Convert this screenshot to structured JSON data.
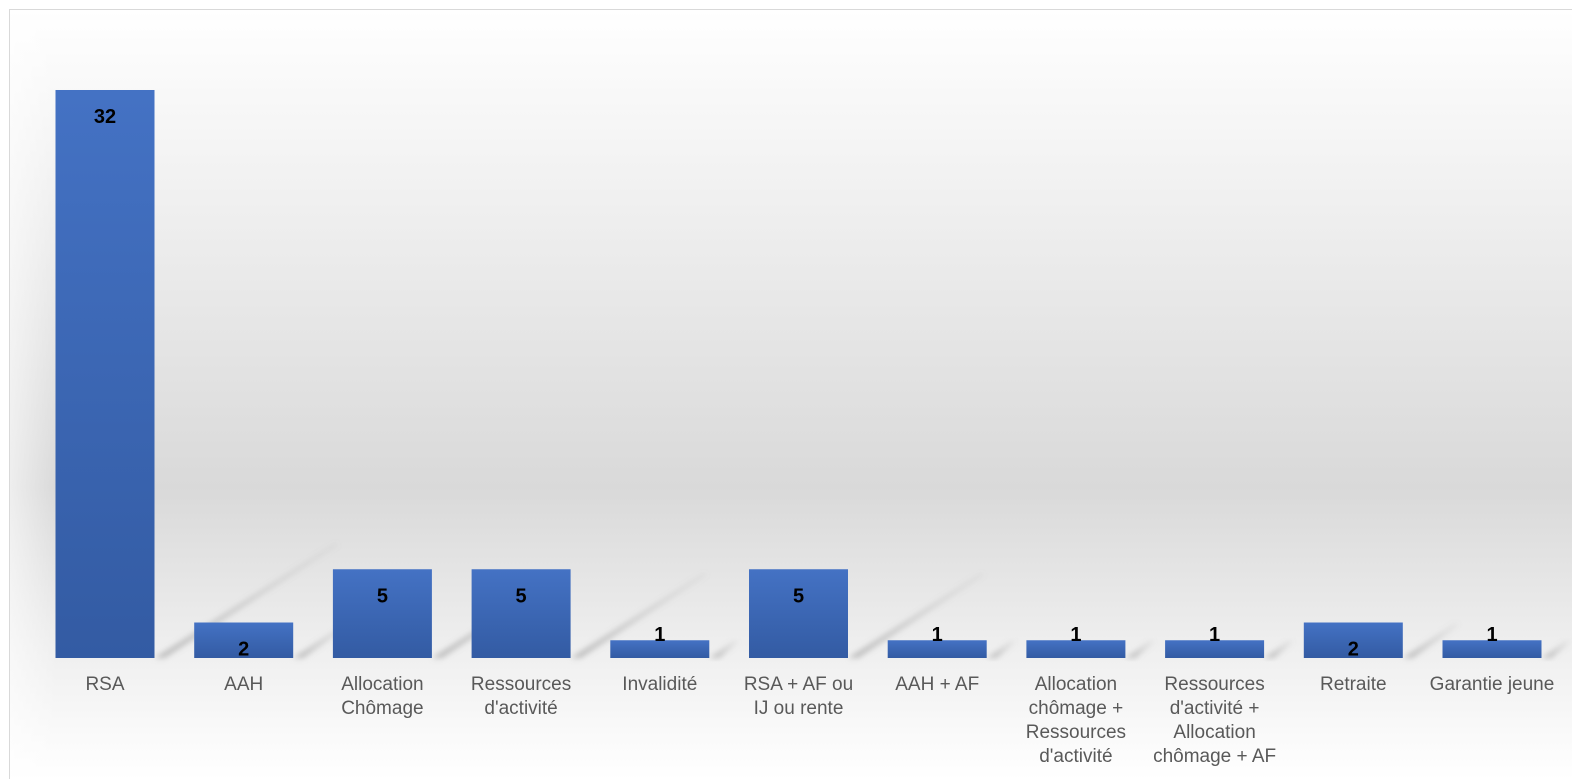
{
  "chart_data": {
    "type": "bar",
    "title": "",
    "xlabel": "",
    "ylabel": "",
    "ylim": [
      0,
      32
    ],
    "grid": false,
    "legend": "none",
    "bar_color": "#4472c4",
    "bar_color_dark": "#2f5597",
    "label_color": "#595959",
    "categories": [
      "RSA",
      "AAH",
      "Allocation Chômage",
      "Ressources d'activité",
      "Invalidité",
      "RSA + AF ou IJ ou rente",
      "AAH + AF",
      "Allocation chômage + Ressources d'activité",
      "Ressources d'activité + Allocation chômage + AF",
      "Retraite",
      "Garantie jeune"
    ],
    "category_lines": [
      [
        "RSA"
      ],
      [
        "AAH"
      ],
      [
        "Allocation",
        "Chômage"
      ],
      [
        "Ressources",
        "d'activité"
      ],
      [
        "Invalidité"
      ],
      [
        "RSA + AF ou",
        "IJ ou rente"
      ],
      [
        "AAH + AF"
      ],
      [
        "Allocation",
        "chômage +",
        "Ressources",
        "d'activité"
      ],
      [
        "Ressources",
        "d'activité +",
        "Allocation",
        "chômage + AF"
      ],
      [
        "Retraite"
      ],
      [
        "Garantie jeune"
      ]
    ],
    "values": [
      32,
      2,
      5,
      5,
      1,
      5,
      1,
      1,
      1,
      2,
      1
    ]
  }
}
